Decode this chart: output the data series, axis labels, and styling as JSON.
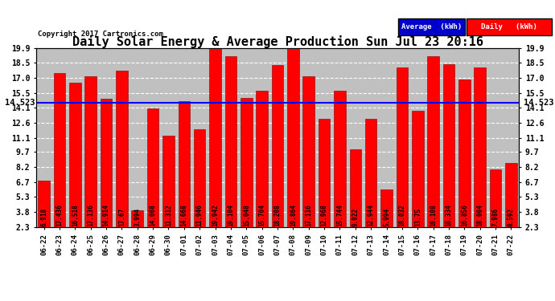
{
  "title": "Daily Solar Energy & Average Production Sun Jul 23 20:16",
  "copyright": "Copyright 2017 Cartronics.com",
  "average": 14.523,
  "bar_color": "#FF0000",
  "avg_line_color": "#0000FF",
  "background_color": "#000000",
  "plot_bg_color": "#C0C0C0",
  "categories": [
    "06-22",
    "06-23",
    "06-24",
    "06-25",
    "06-26",
    "06-27",
    "06-28",
    "06-29",
    "06-30",
    "07-01",
    "07-02",
    "07-03",
    "07-04",
    "07-05",
    "07-06",
    "07-07",
    "07-08",
    "07-09",
    "07-10",
    "07-11",
    "07-12",
    "07-13",
    "07-14",
    "07-15",
    "07-16",
    "07-17",
    "07-18",
    "07-19",
    "07-20",
    "07-21",
    "07-22"
  ],
  "values": [
    6.918,
    17.436,
    16.518,
    17.136,
    14.914,
    17.67,
    3.994,
    14.008,
    11.312,
    14.668,
    11.946,
    19.942,
    19.104,
    15.048,
    15.704,
    18.208,
    19.864,
    17.116,
    12.968,
    15.744,
    9.922,
    12.944,
    5.994,
    18.032,
    13.75,
    19.108,
    18.334,
    16.856,
    18.004,
    7.986,
    8.592
  ],
  "yticks": [
    2.3,
    3.8,
    5.3,
    6.7,
    8.2,
    9.7,
    11.1,
    12.6,
    14.1,
    15.5,
    17.0,
    18.5,
    19.9
  ],
  "ylim_min": 2.3,
  "ylim_max": 19.9,
  "legend_avg_bg": "#0000CC",
  "legend_daily_bg": "#FF0000",
  "legend_avg_label": "Average  (kWh)",
  "legend_daily_label": "Daily   (kWh)",
  "title_fontsize": 11,
  "tick_fontsize": 7,
  "bar_label_fontsize": 5.5,
  "xlabel_fontsize": 6.5
}
